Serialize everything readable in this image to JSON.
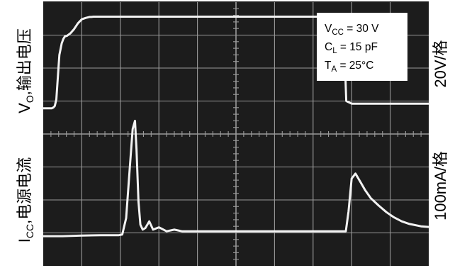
{
  "chart_data": {
    "type": "line",
    "title": "",
    "grid": true,
    "left_labels": {
      "voltage": {
        "main": "V",
        "sub": "O",
        "rest": ",输出电压"
      },
      "current": {
        "main": "I",
        "sub": "CC",
        "rest": ",电源电流"
      }
    },
    "right_labels": {
      "voltage": "20V/格",
      "current": "100mA/格"
    },
    "conditions": [
      {
        "main": "V",
        "sub": "CC",
        "rest": " = 30 V"
      },
      {
        "main": "C",
        "sub": "L",
        "rest": " = 15 pF"
      },
      {
        "main": "T",
        "sub": "A",
        "rest": " = 25°C"
      }
    ],
    "x_divisions": 10,
    "y_divisions": 8,
    "series": [
      {
        "x": [
          0,
          0.22,
          0.26,
          0.3,
          0.34,
          0.38,
          0.42,
          0.48,
          0.52,
          0.56,
          0.62,
          0.7,
          0.8,
          0.9,
          1.0,
          1.1,
          1.2,
          1.25,
          1.3,
          1.4,
          1.6,
          2.0,
          3.0,
          4.0,
          5.0,
          6.0,
          7.0,
          7.72,
          7.76,
          7.82,
          7.86,
          8.0,
          8.5,
          9.0,
          9.5,
          10.0
        ],
        "values": [
          0.78,
          0.78,
          0.8,
          0.85,
          1.05,
          1.75,
          2.4,
          2.75,
          2.88,
          2.96,
          2.98,
          3.05,
          3.18,
          3.36,
          3.48,
          3.52,
          3.55,
          3.55,
          3.56,
          3.56,
          3.56,
          3.56,
          3.56,
          3.56,
          3.56,
          3.56,
          3.56,
          3.56,
          3.4,
          2.4,
          1.0,
          0.92,
          0.92,
          0.92,
          0.92,
          0.92
        ]
      },
      {
        "x": [
          0,
          0.5,
          1.0,
          1.5,
          1.95,
          2.05,
          2.15,
          2.25,
          2.32,
          2.38,
          2.42,
          2.47,
          2.52,
          2.58,
          2.65,
          2.75,
          2.85,
          3.0,
          3.2,
          3.4,
          3.6,
          4.0,
          5.0,
          6.0,
          7.0,
          7.5,
          7.75,
          7.85,
          7.92,
          8.0,
          8.1,
          8.2,
          8.35,
          8.5,
          8.7,
          8.9,
          9.1,
          9.3,
          9.5,
          9.8,
          10.0
        ],
        "values": [
          -0.15,
          -0.15,
          -0.13,
          -0.12,
          -0.12,
          -0.1,
          0.4,
          2.0,
          3.1,
          3.35,
          2.5,
          0.9,
          0.2,
          0.05,
          0.1,
          0.3,
          0.05,
          0.12,
          0.0,
          0.05,
          0.0,
          0.0,
          0.0,
          0.0,
          0.0,
          0.0,
          0.0,
          0.0,
          0.6,
          1.6,
          1.75,
          1.55,
          1.25,
          1.0,
          0.78,
          0.58,
          0.42,
          0.3,
          0.22,
          0.15,
          0.13
        ]
      }
    ]
  }
}
